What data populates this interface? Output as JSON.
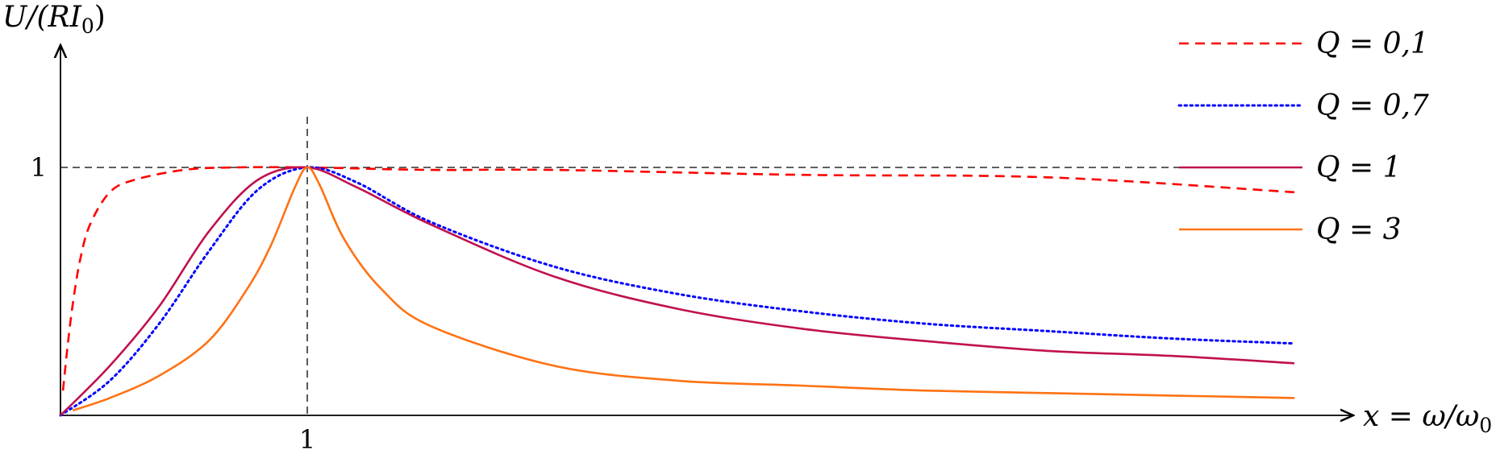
{
  "chart_data": {
    "type": "line",
    "title": "",
    "xlabel": "x = ω/ω",
    "xlabel_sub": "0",
    "ylabel": "U/(RI",
    "ylabel_sub": "0",
    "ylabel_tail": ")",
    "xlim": [
      0,
      5.2
    ],
    "ylim": [
      0,
      1.25
    ],
    "xticks": [
      {
        "value": 1,
        "label": "1"
      }
    ],
    "yticks": [
      {
        "value": 1,
        "label": "1"
      }
    ],
    "grid": false,
    "reference_lines": [
      {
        "orientation": "horizontal",
        "value": 1,
        "style": "dashed"
      },
      {
        "orientation": "vertical",
        "value": 1,
        "style": "dashed"
      }
    ],
    "legend_position": "top-right",
    "series": [
      {
        "name": "Q = 0,1",
        "Q": 0.1,
        "color": "#ff0000",
        "style": "dashed",
        "x": [
          0.01,
          0.03,
          0.05,
          0.08,
          0.12,
          0.2,
          0.3,
          0.5,
          0.7,
          1,
          1.5,
          2,
          3,
          4,
          5
        ],
        "values": [
          0.1,
          0.29,
          0.45,
          0.63,
          0.77,
          0.9,
          0.95,
          0.99,
          1.0,
          1.0,
          0.99,
          0.99,
          0.97,
          0.96,
          0.9
        ]
      },
      {
        "name": "Q = 0,7",
        "Q": 0.7,
        "color": "#0000ff",
        "style": "dotted",
        "x": [
          0,
          0.2,
          0.4,
          0.6,
          0.8,
          1,
          1.2,
          1.5,
          2,
          2.5,
          3,
          3.5,
          4,
          4.5,
          5
        ],
        "values": [
          0,
          0.14,
          0.37,
          0.66,
          0.91,
          1.0,
          0.94,
          0.78,
          0.6,
          0.49,
          0.42,
          0.37,
          0.34,
          0.31,
          0.29
        ]
      },
      {
        "name": "Q = 1",
        "Q": 1,
        "color": "#c0104f",
        "style": "solid",
        "x": [
          0,
          0.2,
          0.4,
          0.6,
          0.8,
          1,
          1.2,
          1.5,
          2,
          2.5,
          3,
          3.5,
          4,
          4.5,
          5
        ],
        "values": [
          0,
          0.2,
          0.44,
          0.74,
          0.95,
          1.0,
          0.92,
          0.77,
          0.56,
          0.43,
          0.35,
          0.3,
          0.26,
          0.24,
          0.21
        ]
      },
      {
        "name": "Q = 3",
        "Q": 3,
        "color": "#ff7214",
        "style": "solid",
        "x": [
          0.05,
          0.2,
          0.4,
          0.6,
          0.75,
          0.85,
          0.95,
          1,
          1.05,
          1.15,
          1.3,
          1.5,
          2,
          2.5,
          3,
          3.5,
          4,
          4.5,
          5
        ],
        "values": [
          0.02,
          0.07,
          0.16,
          0.3,
          0.5,
          0.68,
          0.92,
          1.0,
          0.93,
          0.71,
          0.51,
          0.36,
          0.2,
          0.14,
          0.12,
          0.1,
          0.09,
          0.08,
          0.07
        ]
      }
    ]
  }
}
